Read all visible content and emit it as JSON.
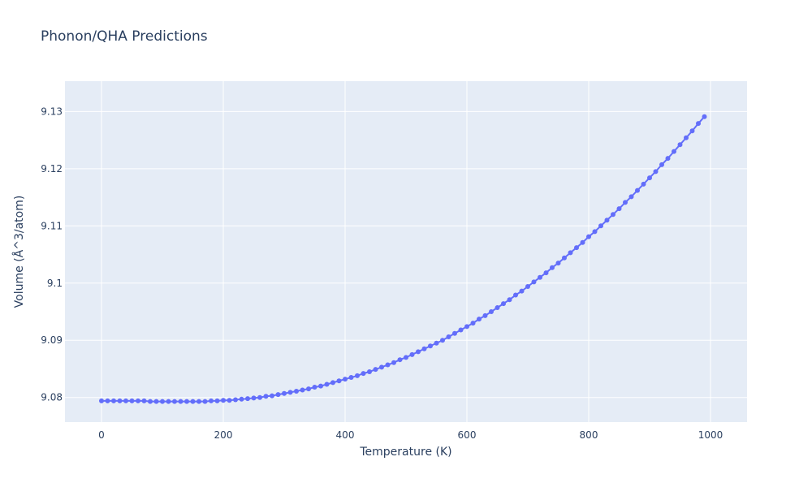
{
  "chart_data": {
    "type": "line",
    "title": "Phonon/QHA Predictions",
    "xlabel": "Temperature (K)",
    "ylabel": "Volume (Å^3/atom)",
    "xlim": [
      -60,
      1060
    ],
    "ylim": [
      9.0757,
      9.1353
    ],
    "xticks": [
      0,
      200,
      400,
      600,
      800,
      1000
    ],
    "xtick_labels": [
      "0",
      "200",
      "400",
      "600",
      "800",
      "1000"
    ],
    "yticks": [
      9.08,
      9.09,
      9.1,
      9.11,
      9.12,
      9.13
    ],
    "ytick_labels": [
      "9.08",
      "9.09",
      "9.1",
      "9.11",
      "9.12",
      "9.13"
    ],
    "grid": true,
    "legend": "none",
    "colors": {
      "series": "#636efa",
      "plot_bg": "#e5ecf6",
      "grid": "#ffffff",
      "text": "#2a3f5f"
    },
    "marker": "circle",
    "series": [
      {
        "x": [
          0,
          10,
          20,
          30,
          40,
          50,
          60,
          70,
          80,
          90,
          100,
          110,
          120,
          130,
          140,
          150,
          160,
          170,
          180,
          190,
          200,
          210,
          220,
          230,
          240,
          250,
          260,
          270,
          280,
          290,
          300,
          310,
          320,
          330,
          340,
          350,
          360,
          370,
          380,
          390,
          400,
          410,
          420,
          430,
          440,
          450,
          460,
          470,
          480,
          490,
          500,
          510,
          520,
          530,
          540,
          550,
          560,
          570,
          580,
          590,
          600,
          610,
          620,
          630,
          640,
          650,
          660,
          670,
          680,
          690,
          700,
          710,
          720,
          730,
          740,
          750,
          760,
          770,
          780,
          790,
          800,
          810,
          820,
          830,
          840,
          850,
          860,
          870,
          880,
          890,
          900,
          910,
          920,
          930,
          940,
          950,
          960,
          970,
          980,
          990
        ],
        "values": [
          9.0794,
          9.0794,
          9.0794,
          9.0794,
          9.0794,
          9.0794,
          9.0794,
          9.0794,
          9.0793,
          9.0793,
          9.0793,
          9.0793,
          9.0793,
          9.0793,
          9.0793,
          9.0793,
          9.0793,
          9.0793,
          9.0794,
          9.0794,
          9.0795,
          9.0795,
          9.0796,
          9.0797,
          9.0798,
          9.0799,
          9.08,
          9.0802,
          9.0803,
          9.0805,
          9.0807,
          9.0809,
          9.0811,
          9.0813,
          9.0815,
          9.0818,
          9.082,
          9.0823,
          9.0826,
          9.0829,
          9.0832,
          9.0835,
          9.0838,
          9.0842,
          9.0845,
          9.0849,
          9.0853,
          9.0857,
          9.0861,
          9.0866,
          9.087,
          9.0875,
          9.088,
          9.0885,
          9.089,
          9.0895,
          9.09,
          9.0906,
          9.0912,
          9.0918,
          9.0924,
          9.093,
          9.0937,
          9.0943,
          9.095,
          9.0957,
          9.0964,
          9.0971,
          9.0979,
          9.0986,
          9.0994,
          9.1002,
          9.101,
          9.1018,
          9.1027,
          9.1035,
          9.1044,
          9.1053,
          9.1062,
          9.1071,
          9.1081,
          9.109,
          9.11,
          9.111,
          9.112,
          9.113,
          9.1141,
          9.1151,
          9.1162,
          9.1173,
          9.1184,
          9.1195,
          9.1207,
          9.1218,
          9.123,
          9.1242,
          9.1254,
          9.1266,
          9.1279,
          9.1291
        ]
      }
    ]
  }
}
